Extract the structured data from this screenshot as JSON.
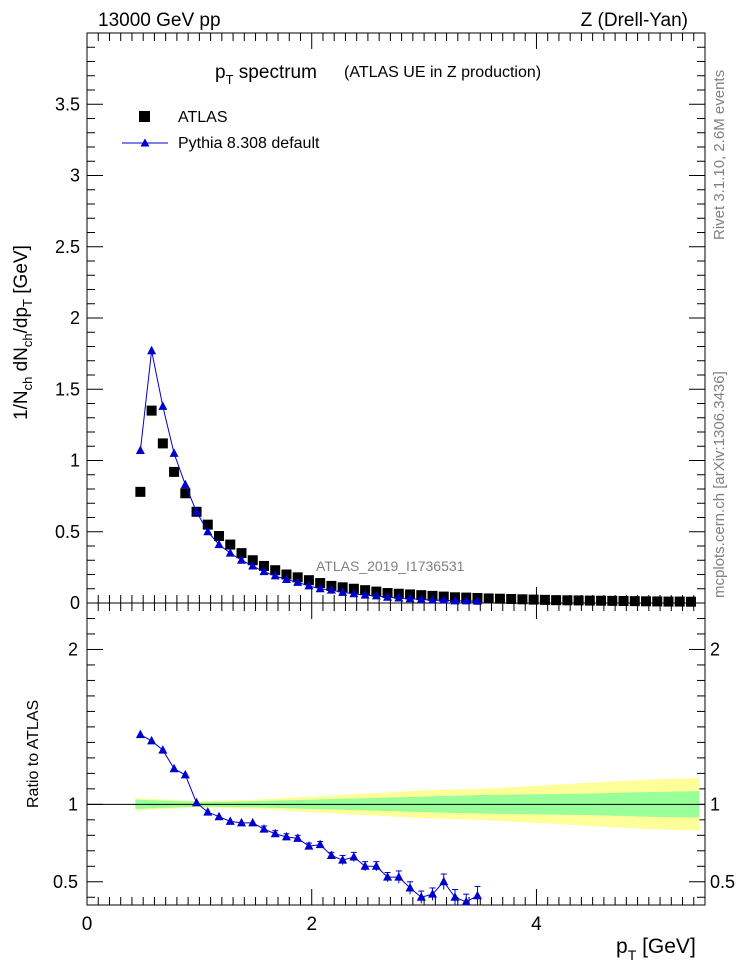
{
  "header": {
    "left": "13000 GeV pp",
    "right": "Z (Drell-Yan)"
  },
  "title": {
    "main": "p",
    "main_sub": "T",
    "main_rest": " spectrum",
    "paren": "(ATLAS UE in Z production)"
  },
  "side_text": {
    "rivet": "Rivet 3.1.10, 2.6M events",
    "mcplots": "mcplots.cern.ch [arXiv:1306.3436]"
  },
  "watermark": "ATLAS_2019_I1736531",
  "colors": {
    "data": "#000000",
    "mc": "#0000cc",
    "band_outer": "#ffff99",
    "band_inner": "#99ff99"
  },
  "chart_data": [
    {
      "type": "scatter",
      "xlabel": "p_T [GeV]",
      "ylabel": "1/N_ch dN_ch/dp_T [GeV]",
      "xlim": [
        0,
        5.5
      ],
      "ylim": [
        0,
        4
      ],
      "x_ticks": [
        "0",
        "2",
        "4"
      ],
      "y_ticks": [
        "0.5",
        "1",
        "1.5",
        "2",
        "2.5",
        "3",
        "3.5"
      ],
      "legend_position": "top-left",
      "series": [
        {
          "name": "ATLAS",
          "marker": "square",
          "x": [
            0.475,
            0.575,
            0.675,
            0.775,
            0.875,
            0.975,
            1.075,
            1.175,
            1.275,
            1.375,
            1.475,
            1.575,
            1.675,
            1.775,
            1.875,
            1.975,
            2.075,
            2.175,
            2.275,
            2.375,
            2.475,
            2.575,
            2.675,
            2.775,
            2.875,
            2.975,
            3.075,
            3.175,
            3.275,
            3.375,
            3.475,
            3.575,
            3.675,
            3.775,
            3.875,
            3.975,
            4.075,
            4.175,
            4.275,
            4.375,
            4.475,
            4.575,
            4.675,
            4.775,
            4.875,
            4.975,
            5.075,
            5.175,
            5.275,
            5.375
          ],
          "y": [
            0.78,
            1.35,
            1.12,
            0.92,
            0.77,
            0.64,
            0.55,
            0.47,
            0.41,
            0.35,
            0.3,
            0.26,
            0.23,
            0.2,
            0.18,
            0.16,
            0.14,
            0.12,
            0.11,
            0.1,
            0.09,
            0.08,
            0.07,
            0.065,
            0.06,
            0.055,
            0.05,
            0.045,
            0.04,
            0.038,
            0.035,
            0.032,
            0.03,
            0.028,
            0.026,
            0.024,
            0.022,
            0.02,
            0.019,
            0.018,
            0.017,
            0.016,
            0.015,
            0.014,
            0.013,
            0.012,
            0.011,
            0.01,
            0.01,
            0.009
          ]
        },
        {
          "name": "Pythia 8.308 default",
          "marker": "triangle",
          "x": [
            0.475,
            0.575,
            0.675,
            0.775,
            0.875,
            0.975,
            1.075,
            1.175,
            1.275,
            1.375,
            1.475,
            1.575,
            1.675,
            1.775,
            1.875,
            1.975,
            2.075,
            2.175,
            2.275,
            2.375,
            2.475,
            2.575,
            2.675,
            2.775,
            2.875,
            2.975,
            3.075,
            3.175,
            3.275,
            3.375,
            3.475
          ],
          "y": [
            1.07,
            1.77,
            1.38,
            1.05,
            0.83,
            0.64,
            0.5,
            0.41,
            0.35,
            0.3,
            0.26,
            0.22,
            0.19,
            0.165,
            0.145,
            0.12,
            0.1,
            0.09,
            0.075,
            0.065,
            0.055,
            0.05,
            0.04,
            0.035,
            0.03,
            0.025,
            0.02,
            0.02,
            0.015,
            0.015,
            0.012
          ]
        }
      ]
    },
    {
      "type": "scatter",
      "xlabel": "p_T [GeV]",
      "ylabel": "Ratio to ATLAS",
      "xlim": [
        0,
        5.5
      ],
      "ylim": [
        0.35,
        2.3
      ],
      "y_ticks": [
        "0.5",
        "1",
        "2"
      ],
      "x_ticks": [
        "0",
        "2",
        "4"
      ],
      "series": [
        {
          "name": "Pythia 8.308 default",
          "x": [
            0.475,
            0.575,
            0.675,
            0.775,
            0.875,
            0.975,
            1.075,
            1.175,
            1.275,
            1.375,
            1.475,
            1.575,
            1.675,
            1.775,
            1.875,
            1.975,
            2.075,
            2.175,
            2.275,
            2.375,
            2.475,
            2.575,
            2.675,
            2.775,
            2.875,
            2.975,
            3.075,
            3.175,
            3.275,
            3.375,
            3.475
          ],
          "y": [
            1.45,
            1.41,
            1.35,
            1.23,
            1.19,
            1.01,
            0.95,
            0.92,
            0.89,
            0.88,
            0.88,
            0.84,
            0.81,
            0.79,
            0.78,
            0.73,
            0.74,
            0.67,
            0.64,
            0.66,
            0.6,
            0.6,
            0.53,
            0.53,
            0.46,
            0.4,
            0.42,
            0.5,
            0.4,
            0.37,
            0.41
          ],
          "err": [
            0.01,
            0.01,
            0.01,
            0.01,
            0.01,
            0.01,
            0.01,
            0.01,
            0.01,
            0.01,
            0.01,
            0.02,
            0.02,
            0.02,
            0.02,
            0.02,
            0.02,
            0.02,
            0.03,
            0.03,
            0.03,
            0.03,
            0.03,
            0.04,
            0.04,
            0.04,
            0.04,
            0.05,
            0.05,
            0.05,
            0.06
          ]
        },
        {
          "name": "ATLAS uncertainty band",
          "band_x": [
            0.43,
            1.0,
            1.5,
            2.0,
            2.5,
            3.0,
            3.5,
            4.0,
            4.5,
            5.0,
            5.45
          ],
          "outer_half": [
            0.04,
            0.02,
            0.03,
            0.05,
            0.07,
            0.09,
            0.1,
            0.12,
            0.14,
            0.16,
            0.17
          ],
          "inner_half": [
            0.03,
            0.015,
            0.02,
            0.03,
            0.04,
            0.05,
            0.06,
            0.065,
            0.07,
            0.08,
            0.085
          ]
        }
      ]
    }
  ]
}
